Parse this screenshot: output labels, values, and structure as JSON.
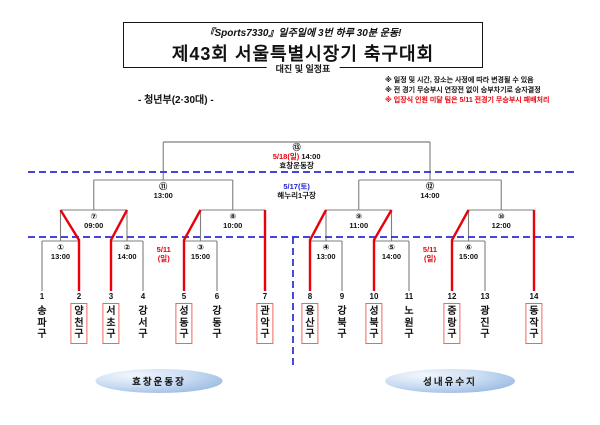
{
  "header": {
    "slogan": "『Sports7330』일주일에 3번 하루 30분 운동!",
    "title": "제43회 서울특별시장기 축구대회",
    "subtitle": "대진 및 일정표",
    "division": "- 청년부(2·30대) -",
    "notes": [
      {
        "text": "※ 일정 및 시간, 장소는 사정에 따라 변경될 수 있음",
        "color": "black"
      },
      {
        "text": "※ 전 경기 무승부시 연장전 없이 승부차기로 승자결정",
        "color": "black"
      },
      {
        "text": "※ 입장식 인원 미달 팀은 5/11 전경기 무승부시 패배처리",
        "color": "red"
      }
    ]
  },
  "teams": [
    {
      "no": "1",
      "name": "송파구",
      "advanced": false
    },
    {
      "no": "2",
      "name": "양천구",
      "advanced": true
    },
    {
      "no": "3",
      "name": "서초구",
      "advanced": true
    },
    {
      "no": "4",
      "name": "강서구",
      "advanced": false
    },
    {
      "no": "5",
      "name": "성동구",
      "advanced": true
    },
    {
      "no": "6",
      "name": "강동구",
      "advanced": false
    },
    {
      "no": "7",
      "name": "관악구",
      "advanced": true
    },
    {
      "no": "8",
      "name": "용산구",
      "advanced": true
    },
    {
      "no": "9",
      "name": "강북구",
      "advanced": false
    },
    {
      "no": "10",
      "name": "성북구",
      "advanced": true
    },
    {
      "no": "11",
      "name": "노원구",
      "advanced": false
    },
    {
      "no": "12",
      "name": "중랑구",
      "advanced": true
    },
    {
      "no": "13",
      "name": "광진구",
      "advanced": false
    },
    {
      "no": "14",
      "name": "동작구",
      "advanced": true
    }
  ],
  "matches": {
    "round1": [
      {
        "num": "①",
        "time": "13:00"
      },
      {
        "num": "②",
        "time": "14:00"
      },
      {
        "num": "③",
        "time": "15:00"
      },
      {
        "num": "④",
        "time": "13:00"
      },
      {
        "num": "⑤",
        "time": "14:00"
      },
      {
        "num": "⑥",
        "time": "15:00"
      }
    ],
    "quarter": [
      {
        "num": "⑦",
        "time": "09:00"
      },
      {
        "num": "⑧",
        "time": "10:00"
      },
      {
        "num": "⑨",
        "time": "11:00"
      },
      {
        "num": "⑩",
        "time": "12:00"
      }
    ],
    "semi": [
      {
        "num": "⑪",
        "time": "13:00"
      },
      {
        "num": "⑫",
        "time": "14:00"
      }
    ],
    "final": {
      "num": "⑬",
      "date": "5/18(일)",
      "time": "14:00",
      "venue": "효창운동장"
    }
  },
  "schedule": {
    "round1_date": "5/11",
    "round1_day": "(일)",
    "semi_date": "5/17(토)",
    "semi_venue": "해누리1구장"
  },
  "venues": {
    "left": "효창운동장",
    "right": "성내유수지"
  },
  "colors": {
    "winner_red": "#e8000a",
    "box_red": "#f06562",
    "schedule_blue": "#2b2bd4",
    "line_gray": "#7f7f7f"
  }
}
